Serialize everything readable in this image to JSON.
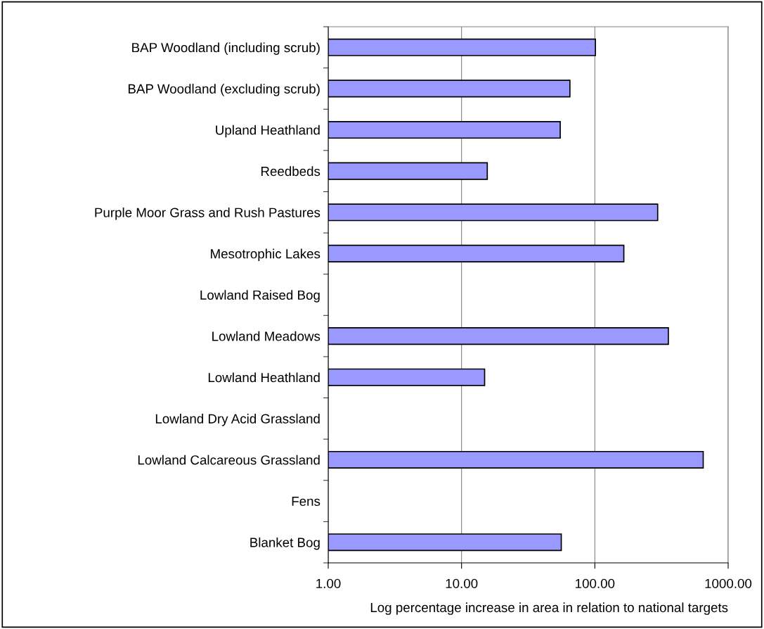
{
  "chart_data": {
    "type": "bar",
    "orientation": "horizontal",
    "log": "x",
    "xlabel": "Log percentage increase in area in relation to national targets",
    "categories": [
      "BAP Woodland (including scrub)",
      "BAP Woodland (excluding scrub)",
      "Upland Heathland",
      "Reedbeds",
      "Purple Moor Grass and Rush Pastures",
      "Mesotrophic Lakes",
      "Lowland Raised Bog",
      "Lowland Meadows",
      "Lowland Heathland",
      "Lowland Dry Acid Grassland",
      "Lowland Calcareous Grassland",
      "Fens",
      "Blanket Bog"
    ],
    "values": [
      101,
      65,
      55,
      15.6,
      296,
      165,
      null,
      356,
      14.9,
      null,
      650,
      null,
      56
    ],
    "color": "#9999ff",
    "xlim": [
      1,
      1000
    ],
    "xticks": [
      {
        "value": 1,
        "label": "1.00"
      },
      {
        "value": 10,
        "label": "10.00"
      },
      {
        "value": 100,
        "label": "100.00"
      },
      {
        "value": 1000,
        "label": "1000.00"
      }
    ],
    "grid": "x",
    "legend": false
  }
}
